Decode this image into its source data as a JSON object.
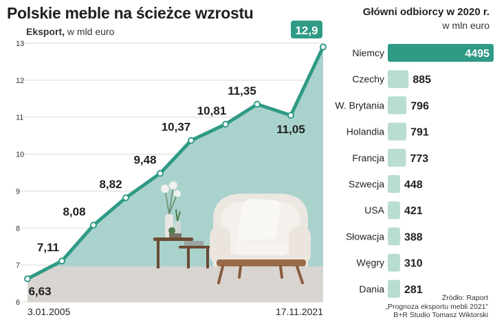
{
  "title": "Polskie meble na ścieżce wzrostu",
  "subtitle_bold": "Eksport,",
  "subtitle_rest": " w mld euro",
  "right_title": "Główni odbiorcy w 2020 r.",
  "right_unit": "w mln euro",
  "source": [
    "Źródło: Raport",
    "„Prognoza eksportu mebli 2021”",
    "B+R Studio Tomasz Wiktorski"
  ],
  "colors": {
    "accent": "#2f9a85",
    "area": "#a9d2cd",
    "light_bar": "#b9ddd2",
    "floor": "#d8d4d0"
  },
  "chart_data": [
    {
      "type": "line",
      "title": "Polskie meble na ścieżce wzrostu",
      "ylabel": "Eksport, w mld euro",
      "ylim": [
        6,
        13
      ],
      "yticks": [
        6,
        7,
        8,
        9,
        10,
        11,
        12,
        13
      ],
      "x_labels": [
        "3.01.2005",
        "17.11.2021"
      ],
      "values": [
        6.63,
        7.11,
        8.08,
        8.82,
        9.48,
        10.37,
        10.81,
        11.35,
        11.05,
        12.9
      ],
      "value_labels": [
        "6,63",
        "7,11",
        "8,08",
        "8,82",
        "9,48",
        "10,37",
        "10,81",
        "11,35",
        "11,05",
        "12,9"
      ],
      "grid": true
    },
    {
      "type": "bar",
      "title": "Główni odbiorcy w 2020 r.",
      "ylabel": "w mln euro",
      "categories": [
        "Niemcy",
        "Czechy",
        "W. Brytania",
        "Holandia",
        "Francja",
        "Szwecja",
        "USA",
        "Słowacja",
        "Węgry",
        "Dania"
      ],
      "values": [
        4495,
        885,
        796,
        791,
        773,
        448,
        421,
        388,
        310,
        281
      ]
    }
  ]
}
